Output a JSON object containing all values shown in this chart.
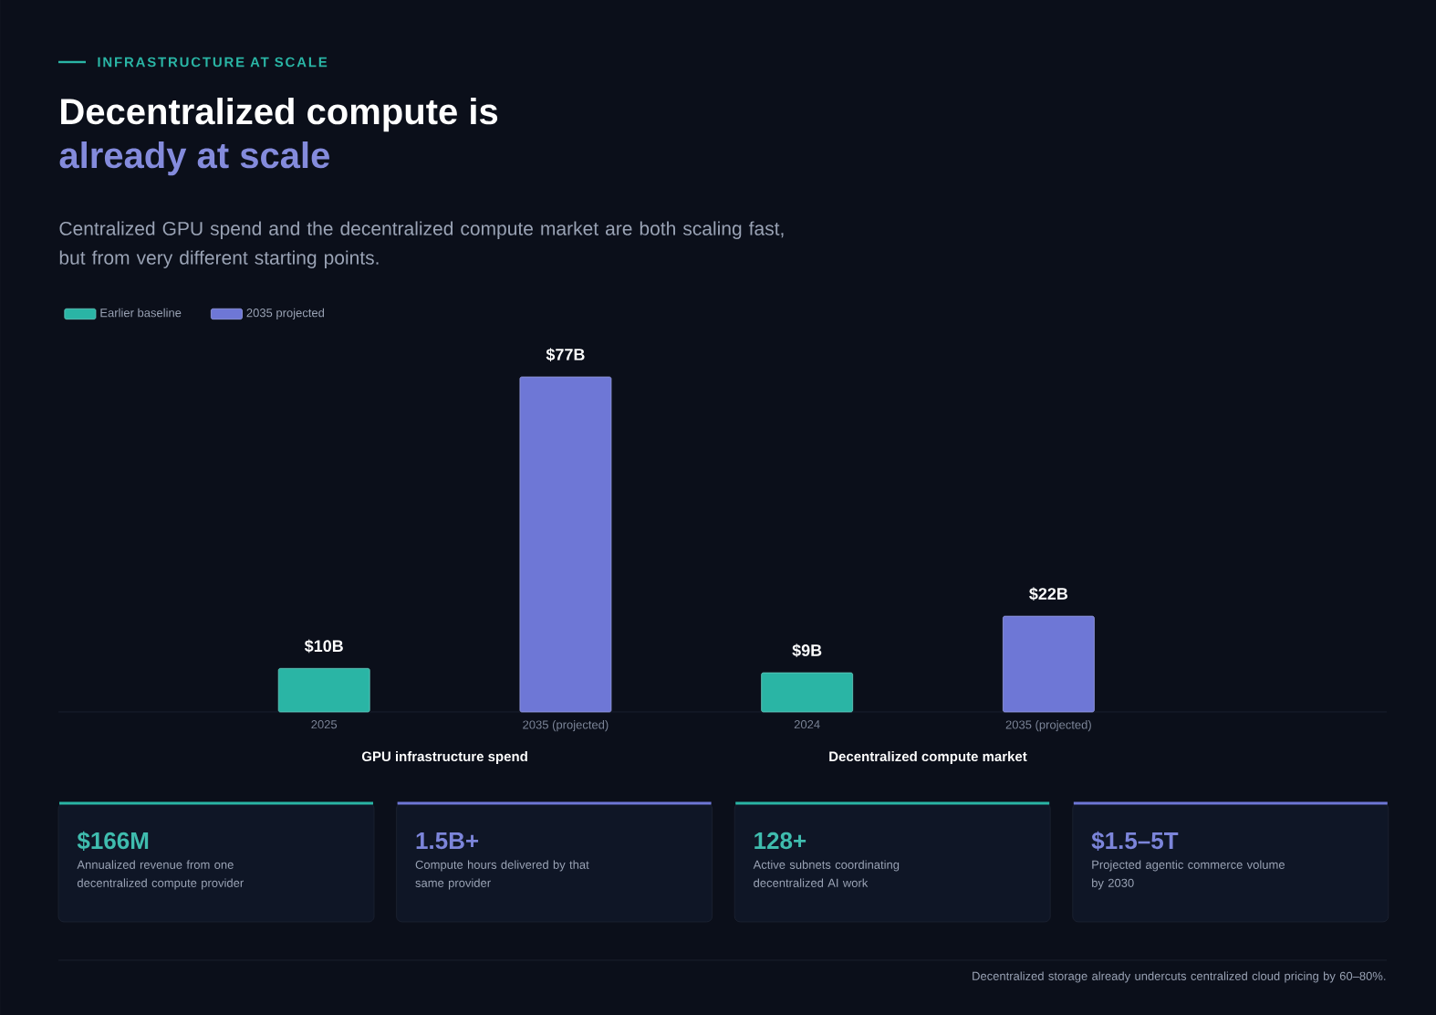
{
  "chart_data": {
    "type": "bar",
    "title": "Decentralized compute is",
    "subtitle": "already at scale",
    "categories": [
      "2025",
      "2035 (projected)",
      "2024",
      "2035 (projected)"
    ],
    "series": [
      {
        "name": "Earlier baseline",
        "color": "#2ab5a5",
        "values": [
          10,
          null,
          9,
          null
        ],
        "value_labels": [
          "$10B",
          null,
          "$9B",
          null
        ]
      },
      {
        "name": "2035 projected",
        "color": "#6e77d6",
        "values": [
          null,
          77,
          null,
          22
        ],
        "value_labels": [
          null,
          "$77B",
          null,
          "$22B"
        ]
      }
    ],
    "legend": "top left",
    "annotations": [
      "INFRASTRUCTURE AT SCALE",
      "Centralized GPU spend and the decentralized compute market are both scaling fast, but from very different starting points.",
      "GPU infrastructure spend",
      "Decentralized compute market",
      "$166M",
      "Annualized revenue from one decentralized compute provider",
      "1.5B+",
      "Compute hours delivered by that same provider",
      "128+",
      "Active subnets coordinating decentralized AI work",
      "$1.5–5T",
      "Projected agentic commerce volume by 2030",
      "Decentralized storage already undercuts centralized cloud pricing by 60–80%."
    ]
  }
}
